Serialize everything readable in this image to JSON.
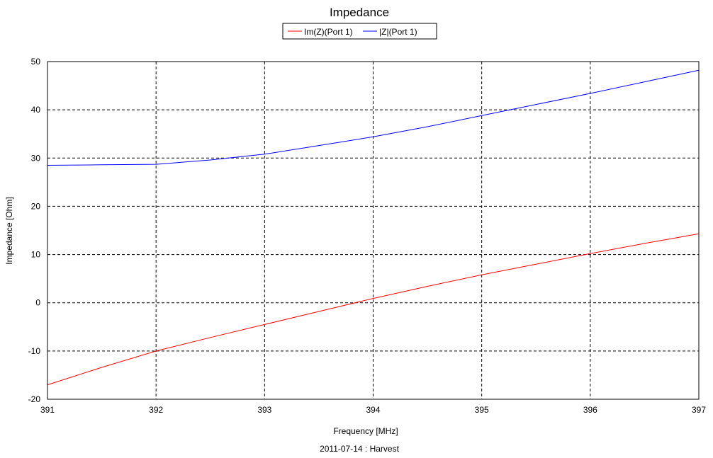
{
  "chart_data": {
    "type": "line",
    "title": "Impedance",
    "xlabel": "Frequency [MHz]",
    "ylabel": "Impedance [Ohm]",
    "footer": "2011-07-14 : Harvest",
    "xlim": [
      391,
      397
    ],
    "ylim": [
      -20,
      50
    ],
    "x_ticks": [
      391,
      392,
      393,
      394,
      395,
      396,
      397
    ],
    "y_ticks": [
      -20,
      -10,
      0,
      10,
      20,
      30,
      40,
      50
    ],
    "grid": true,
    "legend_position": "top-center",
    "series": [
      {
        "name": "Im(Z)(Port 1)",
        "color": "#ff0000",
        "x": [
          391,
          391.5,
          392,
          392.5,
          393,
          393.5,
          394,
          394.5,
          395,
          395.5,
          396,
          396.5,
          397
        ],
        "y": [
          -17,
          -13.4,
          -10,
          -7.2,
          -4.5,
          -1.8,
          0.9,
          3.4,
          5.8,
          8.0,
          10.2,
          12.3,
          14.3
        ]
      },
      {
        "name": "|Z|(Port 1)",
        "color": "#0000ff",
        "x": [
          391,
          391.5,
          392,
          392.5,
          393,
          393.5,
          394,
          394.5,
          395,
          395.5,
          396,
          396.5,
          397
        ],
        "y": [
          28.5,
          28.6,
          28.7,
          29.6,
          30.8,
          32.6,
          34.4,
          36.5,
          38.8,
          41.1,
          43.4,
          45.8,
          48.2
        ]
      }
    ]
  }
}
